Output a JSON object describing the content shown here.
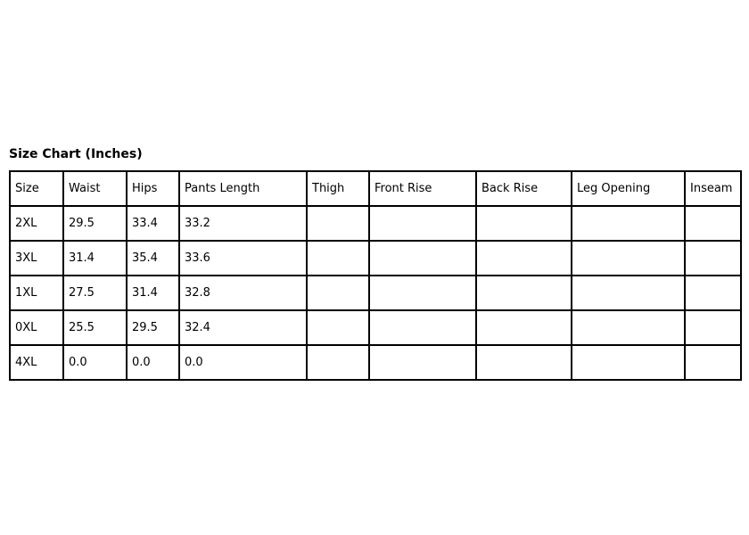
{
  "page": {
    "title": "Size Chart (Inches)"
  },
  "colors": {
    "text": "#000000",
    "border": "#000000",
    "background": "#ffffff"
  },
  "size_chart": {
    "columns": [
      "Size",
      "Waist",
      "Hips",
      "Pants Length",
      "Thigh",
      "Front Rise",
      "Back Rise",
      "Leg Opening",
      "Inseam"
    ],
    "rows": [
      [
        "2XL",
        "29.5",
        "33.4",
        "33.2",
        "",
        "",
        "",
        "",
        ""
      ],
      [
        "3XL",
        "31.4",
        "35.4",
        "33.6",
        "",
        "",
        "",
        "",
        ""
      ],
      [
        "1XL",
        "27.5",
        "31.4",
        "32.8",
        "",
        "",
        "",
        "",
        ""
      ],
      [
        "0XL",
        "25.5",
        "29.5",
        "32.4",
        "",
        "",
        "",
        "",
        ""
      ],
      [
        "4XL",
        "0.0",
        "0.0",
        "0.0",
        "",
        "",
        "",
        "",
        ""
      ]
    ]
  }
}
